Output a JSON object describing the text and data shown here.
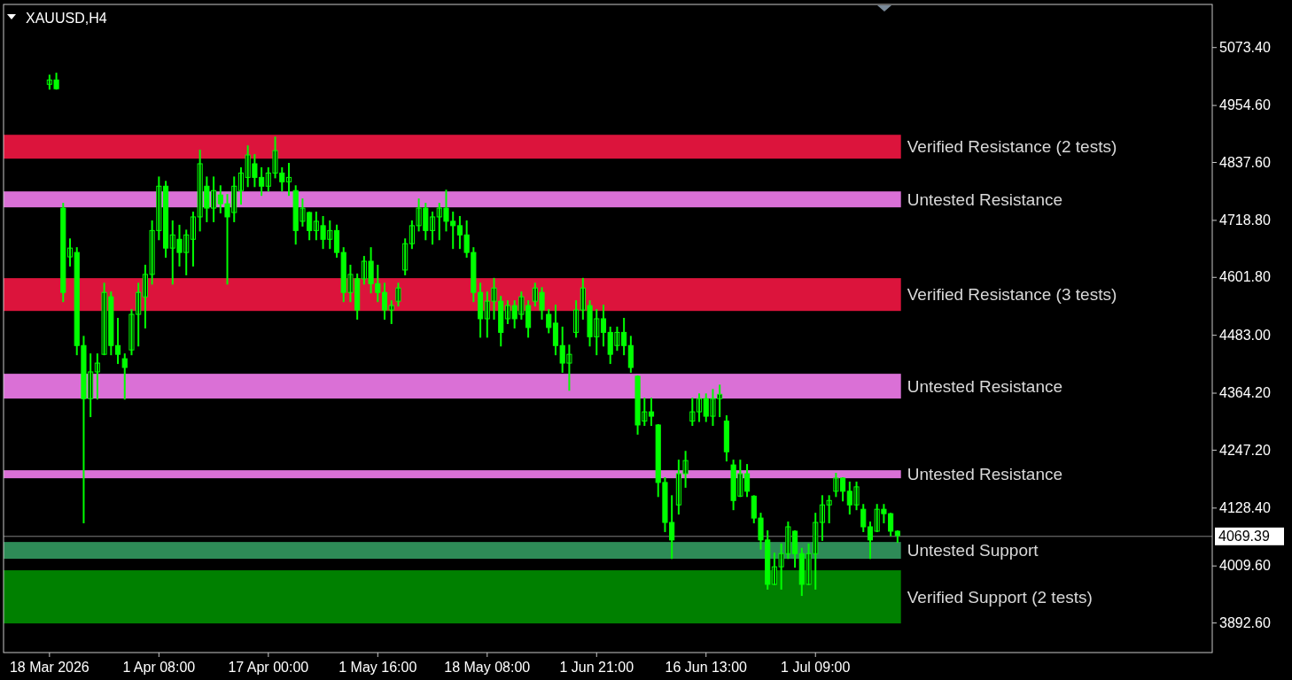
{
  "chart_data": {
    "type": "candlestick",
    "title": "XAUUSD,H4",
    "categories": [
      "18 Mar 2026",
      null,
      null,
      null,
      null,
      null,
      null,
      null,
      null,
      null,
      null,
      null,
      null,
      null,
      null,
      null,
      "1 Apr 08:00",
      null,
      null,
      null,
      null,
      null,
      null,
      null,
      null,
      null,
      null,
      null,
      null,
      null,
      null,
      null,
      "17 Apr 00:00",
      null,
      null,
      null,
      null,
      null,
      null,
      null,
      null,
      null,
      null,
      null,
      null,
      null,
      null,
      null,
      "1 May 16:00",
      null,
      null,
      null,
      null,
      null,
      null,
      null,
      null,
      null,
      null,
      null,
      null,
      null,
      null,
      null,
      "18 May 08:00",
      null,
      null,
      null,
      null,
      null,
      null,
      null,
      null,
      null,
      null,
      null,
      null,
      null,
      null,
      null,
      "1 Jun 21:00",
      null,
      null,
      null,
      null,
      null,
      null,
      null,
      null,
      null,
      null,
      null,
      null,
      null,
      null,
      null,
      "16 Jun 13:00",
      null,
      null,
      null,
      null,
      null,
      null,
      null,
      null,
      null,
      null,
      null,
      null,
      null,
      null,
      null,
      "1 Jul 09:00",
      null,
      null,
      null,
      null,
      null,
      null,
      null,
      null,
      null,
      null,
      null,
      null,
      null,
      null,
      null,
      null,
      null,
      null,
      null,
      null,
      null,
      null,
      null,
      null,
      null,
      null,
      null,
      null,
      null,
      null,
      null,
      null,
      null,
      null,
      null,
      null,
      null,
      null,
      null,
      null,
      null,
      null,
      null,
      null,
      null,
      null,
      null,
      null,
      null,
      null,
      null,
      null,
      null,
      null,
      null,
      null,
      null
    ],
    "series": [
      {
        "color": "#00ff00",
        "ohlc": [
          [
            4997,
            5015,
            4988,
            5006
          ],
          [
            5006,
            5019,
            4988,
            4988
          ],
          [
            4743,
            4752,
            4552,
            4570
          ],
          [
            4643,
            4679,
            4625,
            4661
          ],
          [
            4652,
            4661,
            4443,
            4461
          ],
          [
            4461,
            4479,
            4098,
            4352
          ],
          [
            4352,
            4443,
            4316,
            4407
          ],
          [
            4407,
            4443,
            4352,
            4425
          ],
          [
            4443,
            4588,
            4443,
            4570
          ],
          [
            4561,
            4570,
            4443,
            4461
          ],
          [
            4461,
            4516,
            4425,
            4443
          ],
          [
            4434,
            4443,
            4352,
            4416
          ],
          [
            4452,
            4534,
            4443,
            4525
          ],
          [
            4525,
            4588,
            4461,
            4570
          ],
          [
            4561,
            4625,
            4498,
            4607
          ],
          [
            4607,
            4716,
            4588,
            4697
          ],
          [
            4697,
            4806,
            4679,
            4788
          ],
          [
            4788,
            4797,
            4643,
            4661
          ],
          [
            4661,
            4716,
            4588,
            4688
          ],
          [
            4679,
            4707,
            4625,
            4652
          ],
          [
            4652,
            4697,
            4607,
            4688
          ],
          [
            4679,
            4734,
            4625,
            4725
          ],
          [
            4725,
            4861,
            4697,
            4834
          ],
          [
            4788,
            4806,
            4716,
            4743
          ],
          [
            4743,
            4806,
            4716,
            4779
          ],
          [
            4770,
            4788,
            4734,
            4752
          ],
          [
            4752,
            4770,
            4588,
            4725
          ],
          [
            4734,
            4806,
            4716,
            4788
          ],
          [
            4779,
            4825,
            4752,
            4815
          ],
          [
            4806,
            4870,
            4788,
            4852
          ],
          [
            4834,
            4852,
            4788,
            4806
          ],
          [
            4806,
            4825,
            4770,
            4788
          ],
          [
            4788,
            4825,
            4779,
            4815
          ],
          [
            4815,
            4888,
            4806,
            4861
          ],
          [
            4815,
            4825,
            4779,
            4797
          ],
          [
            4797,
            4834,
            4770,
            4806
          ],
          [
            4779,
            4788,
            4670,
            4697
          ],
          [
            4716,
            4761,
            4707,
            4743
          ],
          [
            4734,
            4734,
            4679,
            4697
          ],
          [
            4697,
            4734,
            4679,
            4716
          ],
          [
            4707,
            4725,
            4661,
            4679
          ],
          [
            4679,
            4716,
            4661,
            4697
          ],
          [
            4697,
            4707,
            4643,
            4652
          ],
          [
            4652,
            4661,
            4552,
            4570
          ],
          [
            4570,
            4625,
            4552,
            4607
          ],
          [
            4598,
            4607,
            4516,
            4534
          ],
          [
            4598,
            4643,
            4588,
            4634
          ],
          [
            4634,
            4661,
            4570,
            4588
          ],
          [
            4588,
            4625,
            4552,
            4570
          ],
          [
            4570,
            4588,
            4516,
            4534
          ],
          [
            4534,
            4552,
            4507,
            4543
          ],
          [
            4552,
            4588,
            4543,
            4579
          ],
          [
            4616,
            4679,
            4607,
            4670
          ],
          [
            4670,
            4716,
            4661,
            4707
          ],
          [
            4707,
            4761,
            4697,
            4743
          ],
          [
            4743,
            4752,
            4679,
            4697
          ],
          [
            4697,
            4734,
            4670,
            4725
          ],
          [
            4725,
            4752,
            4679,
            4743
          ],
          [
            4743,
            4779,
            4697,
            4716
          ],
          [
            4716,
            4734,
            4661,
            4707
          ],
          [
            4707,
            4725,
            4661,
            4688
          ],
          [
            4688,
            4716,
            4643,
            4652
          ],
          [
            4652,
            4661,
            4552,
            4570
          ],
          [
            4570,
            4588,
            4479,
            4516
          ],
          [
            4516,
            4570,
            4479,
            4552
          ],
          [
            4552,
            4598,
            4516,
            4579
          ],
          [
            4552,
            4561,
            4461,
            4488
          ],
          [
            4516,
            4552,
            4507,
            4543
          ],
          [
            4543,
            4552,
            4498,
            4516
          ],
          [
            4525,
            4570,
            4516,
            4561
          ],
          [
            4543,
            4552,
            4479,
            4498
          ],
          [
            4552,
            4588,
            4543,
            4579
          ],
          [
            4570,
            4579,
            4516,
            4534
          ],
          [
            4525,
            4534,
            4488,
            4498
          ],
          [
            4507,
            4543,
            4443,
            4461
          ],
          [
            4461,
            4498,
            4407,
            4425
          ],
          [
            4425,
            4461,
            4370,
            4443
          ],
          [
            4488,
            4552,
            4479,
            4534
          ],
          [
            4534,
            4598,
            4516,
            4579
          ],
          [
            4543,
            4552,
            4461,
            4479
          ],
          [
            4479,
            4534,
            4443,
            4516
          ],
          [
            4516,
            4543,
            4461,
            4488
          ],
          [
            4488,
            4498,
            4425,
            4443
          ],
          [
            4461,
            4498,
            4452,
            4488
          ],
          [
            4488,
            4516,
            4443,
            4461
          ],
          [
            4461,
            4479,
            4407,
            4416
          ],
          [
            4398,
            4398,
            4280,
            4298
          ],
          [
            4306,
            4352,
            4298,
            4325
          ],
          [
            4325,
            4352,
            4298,
            4316
          ],
          [
            4298,
            4298,
            4152,
            4180
          ],
          [
            4180,
            4189,
            4080,
            4098
          ],
          [
            4098,
            4152,
            4025,
            4062
          ],
          [
            4134,
            4225,
            4116,
            4198
          ],
          [
            4198,
            4243,
            4171,
            4225
          ],
          [
            4306,
            4352,
            4298,
            4325
          ],
          [
            4325,
            4361,
            4306,
            4352
          ],
          [
            4352,
            4361,
            4306,
            4316
          ],
          [
            4316,
            4370,
            4298,
            4352
          ],
          [
            4352,
            4379,
            4316,
            4361
          ],
          [
            4306,
            4316,
            4225,
            4243
          ],
          [
            4216,
            4225,
            4125,
            4143
          ],
          [
            4152,
            4225,
            4152,
            4198
          ],
          [
            4198,
            4216,
            4152,
            4162
          ],
          [
            4152,
            4152,
            4098,
            4107
          ],
          [
            4107,
            4116,
            4044,
            4062
          ],
          [
            4062,
            4080,
            3962,
            3971
          ],
          [
            3971,
            4034,
            3971,
            4007
          ],
          [
            4007,
            4053,
            3962,
            4034
          ],
          [
            4034,
            4098,
            4025,
            4089
          ],
          [
            4080,
            4080,
            4007,
            4034
          ],
          [
            4034,
            4044,
            3949,
            3971
          ],
          [
            3971,
            4053,
            3971,
            4034
          ],
          [
            4034,
            4116,
            3962,
            4098
          ],
          [
            4098,
            4152,
            4062,
            4134
          ],
          [
            4134,
            4152,
            4098,
            4143
          ],
          [
            4162,
            4198,
            4152,
            4189
          ],
          [
            4189,
            4189,
            4143,
            4162
          ],
          [
            4162,
            4180,
            4116,
            4134
          ],
          [
            4134,
            4180,
            4125,
            4171
          ],
          [
            4125,
            4134,
            4080,
            4089
          ],
          [
            4089,
            4098,
            4025,
            4062
          ],
          [
            4080,
            4134,
            4080,
            4125
          ],
          [
            4125,
            4134,
            4098,
            4116
          ],
          [
            4116,
            4116,
            4071,
            4080
          ],
          [
            4080,
            4080,
            4058,
            4071
          ],
          null,
          null,
          null,
          null,
          null,
          null,
          null,
          null,
          null,
          null,
          null,
          null,
          null,
          null,
          null,
          null,
          null,
          null,
          null,
          null,
          null,
          null,
          null,
          null,
          null,
          null,
          null,
          null,
          null,
          null,
          null,
          null,
          null,
          null,
          null,
          null,
          null,
          null,
          null,
          null,
          null,
          null,
          null,
          null,
          null
        ]
      }
    ],
    "ylim": [
      3831,
      5161
    ],
    "yticks": [
      {
        "value": 5073.4,
        "label": "5073.40"
      },
      {
        "value": 4954.6,
        "label": "4954.60"
      },
      {
        "value": 4837.6,
        "label": "4837.60"
      },
      {
        "value": 4718.8,
        "label": "4718.80"
      },
      {
        "value": 4601.8,
        "label": "4601.80"
      },
      {
        "value": 4483,
        "label": "4483.00"
      },
      {
        "value": 4364.2,
        "label": "4364.20"
      },
      {
        "value": 4247.2,
        "label": "4247.20"
      },
      {
        "value": 4128.4,
        "label": "4128.40"
      },
      {
        "value": 4009.6,
        "label": "4009.60"
      },
      {
        "value": 3892.6,
        "label": "3892.60"
      }
    ],
    "bands": [
      {
        "axis": "y",
        "from": 4844.5,
        "to": 4893.5,
        "label": "Verified Resistance (2 tests)",
        "color": "#dc143c"
      },
      {
        "axis": "y",
        "from": 4744.6,
        "to": 4777.3,
        "label": "Untested Resistance",
        "color": "#da70d6"
      },
      {
        "axis": "y",
        "from": 4532,
        "to": 4599.3,
        "label": "Verified Resistance (3 tests)",
        "color": "#dc143c"
      },
      {
        "axis": "y",
        "from": 4352.2,
        "to": 4403.1,
        "label": "Untested Resistance",
        "color": "#da70d6"
      },
      {
        "axis": "y",
        "from": 4188.7,
        "to": 4205.1,
        "label": "Untested Resistance",
        "color": "#da70d6"
      },
      {
        "axis": "y",
        "from": 4023.4,
        "to": 4057.9,
        "label": "Untested Support",
        "color": "#2e8b57"
      },
      {
        "axis": "y",
        "from": 3890.8,
        "to": 3999.8,
        "label": "Verified Support (2 tests)",
        "color": "#008000"
      }
    ],
    "ref_lines": [
      {
        "axis": "y",
        "value": 4069.39,
        "label": "4069.39",
        "color": "#808080"
      }
    ],
    "grid": false
  }
}
